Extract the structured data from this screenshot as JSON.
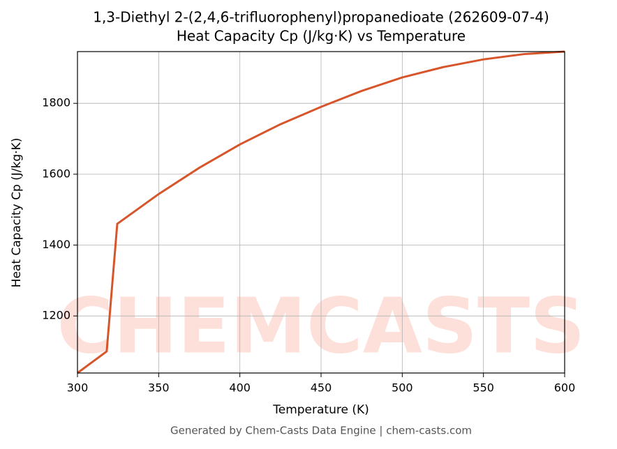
{
  "chart_data": {
    "type": "line",
    "title": [
      "1,3-Diethyl 2-(2,4,6-trifluorophenyl)propanedioate (262609-07-4)",
      "Heat Capacity Cp (J/kg·K) vs Temperature"
    ],
    "xlabel": "Temperature (K)",
    "ylabel": "Heat Capacity Cp (J/kg·K)",
    "x": [
      300,
      318,
      324.5,
      350,
      375,
      400,
      425,
      450,
      475,
      500,
      525,
      550,
      575,
      600
    ],
    "series": [
      {
        "name": "Cp",
        "color": "#d6552a",
        "values": [
          1039,
          1100,
          1460,
          1544,
          1618,
          1684,
          1741,
          1790,
          1835,
          1873,
          1902,
          1924,
          1939,
          1946
        ]
      }
    ],
    "xlim": [
      300,
      600
    ],
    "ylim": [
      1039,
      1946
    ],
    "xticks": [
      300,
      350,
      400,
      450,
      500,
      550,
      600
    ],
    "yticks": [
      1200,
      1400,
      1600,
      1800
    ],
    "grid": true,
    "watermark": "CHEMCASTS",
    "footer": "Generated by Chem-Casts Data Engine | chem-casts.com"
  }
}
